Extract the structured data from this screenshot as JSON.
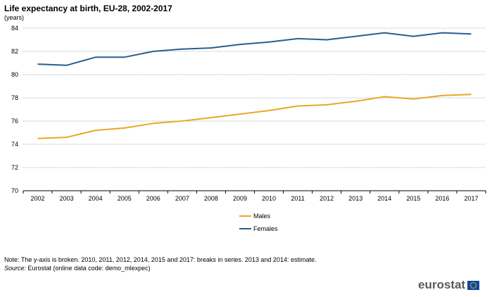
{
  "header": {
    "title": "Life expectancy at birth, EU-28, 2002-2017",
    "unit": "(years)"
  },
  "footer": {
    "note": "Note: The y-axis is broken.  2010, 2011, 2012, 2014, 2015 and 2017: breaks in series.  2013 and 2014: estimate.",
    "source_label": "Source:",
    "source_text": " Eurostat (online data code: demo_mlexpec)",
    "logo_text": "eurostat"
  },
  "chart_data": {
    "type": "line",
    "title": "Life expectancy at birth, EU-28, 2002-2017",
    "ylabel": "(years)",
    "xlabel": "",
    "x": [
      "2002",
      "2003",
      "2004",
      "2005",
      "2006",
      "2007",
      "2008",
      "2009",
      "2010",
      "2011",
      "2012",
      "2013",
      "2014",
      "2015",
      "2016",
      "2017"
    ],
    "ylim": [
      70,
      84
    ],
    "yticks": [
      70,
      72,
      74,
      76,
      78,
      80,
      82,
      84
    ],
    "grid": true,
    "legend_position": "bottom-center",
    "series": [
      {
        "name": "Males",
        "color": "#e8a827",
        "values": [
          74.5,
          74.6,
          75.2,
          75.4,
          75.8,
          76.0,
          76.3,
          76.6,
          76.9,
          77.3,
          77.4,
          77.7,
          78.1,
          77.9,
          78.2,
          78.3
        ]
      },
      {
        "name": "Females",
        "color": "#2a5e8c",
        "values": [
          80.9,
          80.8,
          81.5,
          81.5,
          82.0,
          82.2,
          82.3,
          82.6,
          82.8,
          83.1,
          83.0,
          83.3,
          83.6,
          83.3,
          83.6,
          83.5
        ]
      }
    ]
  }
}
